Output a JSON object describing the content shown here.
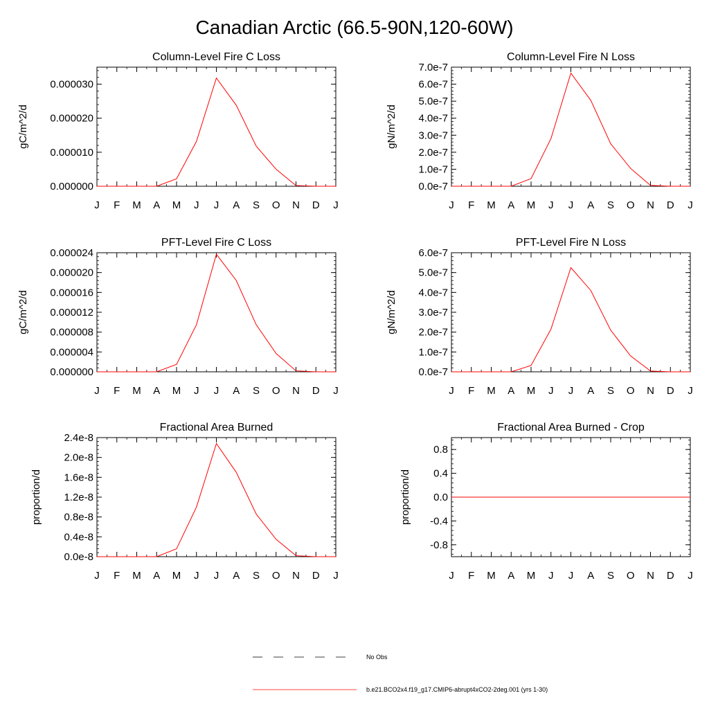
{
  "figure": {
    "title": "Canadian Arctic (66.5-90N,120-60W)"
  },
  "legend": {
    "entries": [
      {
        "label": "No Obs",
        "style": "dashed",
        "color": "#000000"
      },
      {
        "label": "b.e21.BCO2x4.f19_g17.CMIP6-abrupt4xCO2-2deg.001 (yrs 1-30)",
        "style": "solid",
        "color": "#ff0000"
      }
    ]
  },
  "colors": {
    "series": "#ff0000",
    "axis": "#000000"
  },
  "chart_data": [
    {
      "type": "line",
      "title": "Column-Level Fire C Loss",
      "ylabel": "gC/m^2/d",
      "x": [
        "J",
        "F",
        "M",
        "A",
        "M",
        "J",
        "J",
        "A",
        "S",
        "O",
        "N",
        "D",
        "J"
      ],
      "ylim": [
        0,
        3.5e-05
      ],
      "yticks": [
        0,
        1e-05,
        2e-05,
        3e-05
      ],
      "yticklabels": [
        "0.000000",
        "0.000010",
        "0.000020",
        "0.000030"
      ],
      "series": [
        {
          "values": [
            0,
            0,
            0,
            0,
            2.2e-06,
            1.32e-05,
            3.18e-05,
            2.38e-05,
            1.18e-05,
            5e-06,
            2e-07,
            0,
            0
          ]
        }
      ]
    },
    {
      "type": "line",
      "title": "Column-Level Fire N Loss",
      "ylabel": "gN/m^2/d",
      "x": [
        "J",
        "F",
        "M",
        "A",
        "M",
        "J",
        "J",
        "A",
        "S",
        "O",
        "N",
        "D",
        "J"
      ],
      "ylim": [
        0,
        7e-07
      ],
      "yticks": [
        0,
        1e-07,
        2e-07,
        3e-07,
        4e-07,
        5e-07,
        6e-07,
        7e-07
      ],
      "yticklabels": [
        "0.0e-7",
        "1.0e-7",
        "2.0e-7",
        "3.0e-7",
        "4.0e-7",
        "5.0e-7",
        "6.0e-7",
        "7.0e-7"
      ],
      "series": [
        {
          "values": [
            0,
            0,
            0,
            0,
            4.5e-08,
            2.8e-07,
            6.65e-07,
            5.05e-07,
            2.5e-07,
            1.05e-07,
            5e-09,
            0,
            0
          ]
        }
      ]
    },
    {
      "type": "line",
      "title": "PFT-Level Fire C Loss",
      "ylabel": "gC/m^2/d",
      "x": [
        "J",
        "F",
        "M",
        "A",
        "M",
        "J",
        "J",
        "A",
        "S",
        "O",
        "N",
        "D",
        "J"
      ],
      "ylim": [
        0,
        2.4e-05
      ],
      "yticks": [
        0,
        4e-06,
        8e-06,
        1.2e-05,
        1.6e-05,
        2e-05,
        2.4e-05
      ],
      "yticklabels": [
        "0.000000",
        "0.000004",
        "0.000008",
        "0.000012",
        "0.000016",
        "0.000020",
        "0.000024"
      ],
      "series": [
        {
          "values": [
            0,
            0,
            0,
            0,
            1.5e-06,
            9.5e-06,
            2.37e-05,
            1.84e-05,
            9.5e-06,
            3.7e-06,
            2e-07,
            0,
            0
          ]
        }
      ]
    },
    {
      "type": "line",
      "title": "PFT-Level Fire N Loss",
      "ylabel": "gN/m^2/d",
      "x": [
        "J",
        "F",
        "M",
        "A",
        "M",
        "J",
        "J",
        "A",
        "S",
        "O",
        "N",
        "D",
        "J"
      ],
      "ylim": [
        0,
        6e-07
      ],
      "yticks": [
        0,
        1e-07,
        2e-07,
        3e-07,
        4e-07,
        5e-07,
        6e-07
      ],
      "yticklabels": [
        "0.0e-7",
        "1.0e-7",
        "2.0e-7",
        "3.0e-7",
        "4.0e-7",
        "5.0e-7",
        "6.0e-7"
      ],
      "series": [
        {
          "values": [
            0,
            0,
            0,
            0,
            3.2e-08,
            2.15e-07,
            5.25e-07,
            4.1e-07,
            2.1e-07,
            8e-08,
            4e-09,
            0,
            0
          ]
        }
      ]
    },
    {
      "type": "line",
      "title": "Fractional Area Burned",
      "ylabel": "proportion/d",
      "x": [
        "J",
        "F",
        "M",
        "A",
        "M",
        "J",
        "J",
        "A",
        "S",
        "O",
        "N",
        "D",
        "J"
      ],
      "ylim": [
        0,
        2.4e-08
      ],
      "yticks": [
        0,
        4e-09,
        8e-09,
        1.2e-08,
        1.6e-08,
        2e-08,
        2.4e-08
      ],
      "yticklabels": [
        "0.0e-8",
        "0.4e-8",
        "0.8e-8",
        "1.2e-8",
        "1.6e-8",
        "2.0e-8",
        "2.4e-8"
      ],
      "series": [
        {
          "values": [
            0,
            0,
            0,
            0,
            1.6e-09,
            1e-08,
            2.28e-08,
            1.7e-08,
            8.6e-09,
            3.5e-09,
            2e-10,
            0,
            0
          ]
        }
      ]
    },
    {
      "type": "line",
      "title": "Fractional Area Burned - Crop",
      "ylabel": "proportion/d",
      "x": [
        "J",
        "F",
        "M",
        "A",
        "M",
        "J",
        "J",
        "A",
        "S",
        "O",
        "N",
        "D",
        "J"
      ],
      "ylim": [
        -1,
        1
      ],
      "yticks": [
        -0.8,
        -0.4,
        0,
        0.4,
        0.8
      ],
      "yticklabels": [
        "-0.8",
        "-0.4",
        "0.0",
        "0.4",
        "0.8"
      ],
      "series": [
        {
          "values": [
            0,
            0,
            0,
            0,
            0,
            0,
            0,
            0,
            0,
            0,
            0,
            0,
            0
          ]
        }
      ]
    }
  ]
}
